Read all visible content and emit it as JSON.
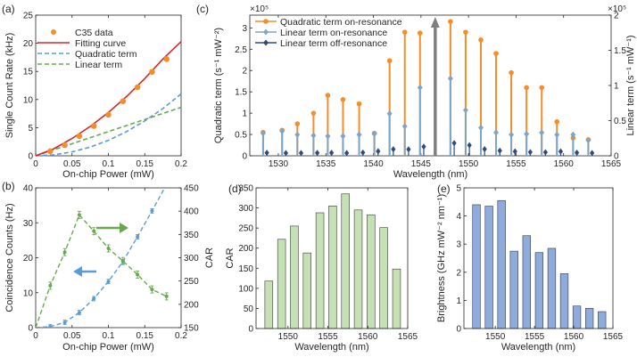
{
  "figure": {
    "panels": [
      "(a)",
      "(b)",
      "(c)",
      "(d)",
      "(e)"
    ]
  },
  "chart_data": [
    {
      "panel": "(a)",
      "type": "scatter",
      "xlabel": "On-chip Power (mW)",
      "ylabel": "Single Count Rate (kHz)",
      "xlim": [
        0,
        0.2
      ],
      "ylim": [
        0,
        25
      ],
      "xticks": [
        0,
        0.05,
        0.1,
        0.15,
        0.2
      ],
      "yticks": [
        0,
        5,
        10,
        15,
        20,
        25
      ],
      "xtick_labels": [
        "0",
        "0.05",
        "0.1",
        "0.15",
        "0.2"
      ],
      "ytick_labels": [
        "0",
        "5",
        "10",
        "15",
        "20",
        "25"
      ],
      "grid": false,
      "legend": "top-left",
      "series": [
        {
          "name": "C35 data",
          "kind": "points",
          "color": "#f28e2b",
          "x": [
            0.02,
            0.04,
            0.06,
            0.08,
            0.1,
            0.12,
            0.14,
            0.16,
            0.18
          ],
          "y": [
            0.8,
            1.9,
            3.5,
            5.3,
            7.3,
            9.7,
            12.2,
            14.9,
            17.2
          ]
        },
        {
          "name": "Fitting curve",
          "kind": "line",
          "color": "#d62728",
          "dash": "solid",
          "x": [
            0,
            0.025,
            0.05,
            0.075,
            0.1,
            0.125,
            0.15,
            0.175,
            0.2
          ],
          "y": [
            0,
            1.25,
            3.08,
            5.22,
            7.7,
            10.54,
            13.73,
            17.2,
            20.3
          ]
        },
        {
          "name": "Quadratic term",
          "kind": "line",
          "color": "#5b9bd5",
          "dash": "dashed",
          "x": [
            0,
            0.025,
            0.05,
            0.075,
            0.1,
            0.125,
            0.15,
            0.175,
            0.2
          ],
          "y": [
            0,
            0.17,
            0.69,
            1.55,
            2.75,
            4.3,
            6.2,
            8.4,
            11.0
          ]
        },
        {
          "name": "Linear term",
          "kind": "line",
          "color": "#6aa84f",
          "dash": "dashed",
          "x": [
            0,
            0.2
          ],
          "y": [
            0,
            8.6
          ]
        }
      ]
    },
    {
      "panel": "(b)",
      "type": "scatter",
      "xlabel": "On-chip Power (mW)",
      "ylabel": "Coincidence Counts (Hz)",
      "y2label": "CAR",
      "xlim": [
        0,
        0.2
      ],
      "ylim": [
        0,
        40
      ],
      "y2lim": [
        150,
        450
      ],
      "xticks": [
        0,
        0.05,
        0.1,
        0.15,
        0.2
      ],
      "yticks": [
        0,
        10,
        20,
        30,
        40
      ],
      "y2ticks": [
        150,
        200,
        250,
        300,
        350,
        400,
        450
      ],
      "xtick_labels": [
        "0",
        "0.05",
        "0.1",
        "0.15",
        "0.2"
      ],
      "ytick_labels": [
        "0",
        "10",
        "20",
        "30",
        "40"
      ],
      "y2tick_labels": [
        "150",
        "200",
        "250",
        "300",
        "350",
        "400",
        "450"
      ],
      "series": [
        {
          "name": "Coincidence counts",
          "axis": "left",
          "color": "#5b9bd5",
          "x": [
            0.02,
            0.04,
            0.06,
            0.08,
            0.1,
            0.12,
            0.14,
            0.16,
            0.18
          ],
          "y": [
            0.3,
            1.5,
            4.3,
            8.3,
            13.2,
            18.9,
            26.0,
            33.4,
            41.0
          ]
        },
        {
          "name": "CAR",
          "axis": "right",
          "color": "#6aa84f",
          "x": [
            0.02,
            0.04,
            0.06,
            0.08,
            0.1,
            0.12,
            0.14,
            0.16,
            0.18
          ],
          "y": [
            240,
            312,
            392,
            357,
            320,
            293,
            264,
            232,
            217
          ]
        }
      ]
    },
    {
      "panel": "(c)",
      "type": "bar",
      "xlabel": "Wavelength (nm)",
      "ylabel": "Quadratic term (s⁻¹ mW⁻²)",
      "y2label": "Linear term (s⁻¹ mW⁻¹)",
      "xlim": [
        1527,
        1565
      ],
      "ylim": [
        0,
        330000
      ],
      "y2lim": [
        0,
        200000
      ],
      "xticks": [
        1530,
        1535,
        1540,
        1545,
        1550,
        1555,
        1560,
        1565
      ],
      "yticks": [
        0,
        50000,
        100000,
        150000,
        200000,
        250000,
        300000
      ],
      "y2ticks": [
        0,
        50000,
        100000,
        150000,
        200000
      ],
      "xtick_labels": [
        "1530",
        "1535",
        "1540",
        "1545",
        "1550",
        "1555",
        "1560",
        "1565"
      ],
      "ytick_labels": [
        "0",
        "0.5",
        "1",
        "1.5",
        "2",
        "2.5",
        "3"
      ],
      "y2tick_labels": [
        "0",
        "0.5",
        "1",
        "1.5",
        "2"
      ],
      "y_exponent": "×10⁵",
      "y2_exponent": "×10⁵",
      "legend": "top-left",
      "pump_wavelength": 1546.5,
      "wavelengths": [
        1528.4,
        1530.4,
        1532.0,
        1533.7,
        1535.2,
        1536.8,
        1538.5,
        1540.1,
        1541.7,
        1543.3,
        1544.9,
        1548.1,
        1549.7,
        1551.3,
        1552.9,
        1554.5,
        1556.1,
        1557.7,
        1559.3,
        1561.0,
        1562.6
      ],
      "series": [
        {
          "name": "Quadratic term on-resonance",
          "axis": "left",
          "color": "#f28e2b",
          "values": [
            55000,
            60000,
            75000,
            100000,
            142000,
            132000,
            122000,
            53000,
            223000,
            290000,
            288000,
            315000,
            290000,
            272000,
            240000,
            195000,
            160000,
            160000,
            80000,
            42000,
            38000
          ]
        },
        {
          "name": "Linear term on-resonance",
          "axis": "right",
          "color": "#7fa5c4",
          "values": [
            32000,
            35000,
            30000,
            29000,
            28000,
            28000,
            30000,
            31000,
            60000,
            42000,
            97000,
            110000,
            65000,
            40000,
            33000,
            30000,
            31000,
            33000,
            30000,
            30000,
            22000
          ]
        },
        {
          "name": "Linear term off-resonance",
          "axis": "right",
          "color": "#2f4b7c",
          "values": [
            4200,
            4000,
            3900,
            4100,
            4300,
            3900,
            4600,
            6500,
            9300,
            9200,
            13000,
            18000,
            15000,
            9500,
            7200,
            6100,
            5200,
            5000,
            6100,
            4500,
            3900
          ]
        }
      ]
    },
    {
      "panel": "(d)",
      "type": "bar",
      "xlabel": "Wavelength (nm)",
      "ylabel": "CAR",
      "xlim": [
        1546,
        1565
      ],
      "ylim": [
        0,
        350
      ],
      "xticks": [
        1550,
        1555,
        1560,
        1565
      ],
      "yticks": [
        0,
        50,
        100,
        150,
        200,
        250,
        300,
        350
      ],
      "xtick_labels": [
        "1550",
        "1555",
        "1560",
        "1565"
      ],
      "ytick_labels": [
        "0",
        "50",
        "100",
        "150",
        "200",
        "250",
        "300",
        "350"
      ],
      "color": "#c5e0b4",
      "categories": [
        1547.6,
        1549.2,
        1550.8,
        1552.4,
        1554.0,
        1555.6,
        1557.2,
        1558.8,
        1560.4,
        1562.0,
        1563.6
      ],
      "values": [
        118,
        222,
        255,
        188,
        288,
        305,
        335,
        295,
        283,
        251,
        148
      ]
    },
    {
      "panel": "(e)",
      "type": "bar",
      "xlabel": "Wavelength (nm)",
      "ylabel": "Brightness (GHz mW⁻² nm⁻¹)",
      "xlim": [
        1546,
        1565
      ],
      "ylim": [
        0,
        5
      ],
      "xticks": [
        1550,
        1555,
        1560,
        1565
      ],
      "yticks": [
        0,
        1,
        2,
        3,
        4,
        5
      ],
      "xtick_labels": [
        "1550",
        "1555",
        "1560",
        "1565"
      ],
      "ytick_labels": [
        "0",
        "1",
        "2",
        "3",
        "4",
        "5"
      ],
      "color": "#8faadc",
      "categories": [
        1547.6,
        1549.2,
        1550.8,
        1552.4,
        1554.0,
        1555.6,
        1557.2,
        1558.8,
        1560.4,
        1562.0,
        1563.6
      ],
      "values": [
        4.4,
        4.35,
        4.55,
        2.75,
        3.3,
        2.7,
        2.85,
        1.95,
        0.8,
        0.72,
        0.6
      ]
    }
  ]
}
